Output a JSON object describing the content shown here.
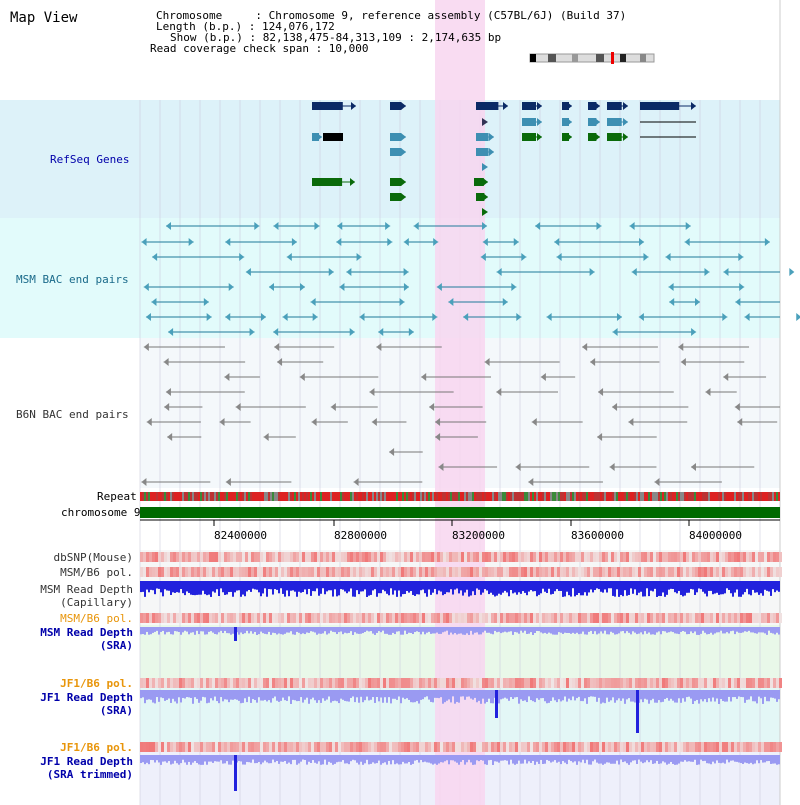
{
  "title": "Map View",
  "header": {
    "chromosome": "Chromosome     : Chromosome 9, reference assembly (C57BL/6J) (Build 37)",
    "length": "Length (b.p.) : 124,076,172",
    "show": "Show (b.p.) : 82,138,475-84,313,109 : 2,174,635 bp",
    "coverage": "Read coverage check span : 10,000"
  },
  "tracks": {
    "refseq": "RefSeq Genes",
    "msm_bac": "MSM BAC end pairs",
    "b6n_bac": "B6N BAC end pairs",
    "repeat": "Repeat",
    "chromosome": "chromosome 9",
    "dbsnp": "dbSNP(Mouse)",
    "msm_b6_pol": "MSM/B6 pol.",
    "msm_read_depth_cap_1": "MSM Read Depth",
    "msm_read_depth_cap_2": "(Capillary)",
    "msm_b6_pol_2": "MSM/B6 pol.",
    "msm_read_depth_sra_1": "MSM Read Depth",
    "msm_read_depth_sra_2": "(SRA)",
    "jf1_b6_pol": "JF1/B6 pol.",
    "jf1_read_depth_sra_1": "JF1 Read Depth",
    "jf1_read_depth_sra_2": "(SRA)",
    "jf1_b6_pol_2": "JF1/B6 pol.",
    "jf1_read_depth_trim_1": "JF1 Read Depth",
    "jf1_read_depth_trim_2": "(SRA trimmed)"
  },
  "axis_ticks": [
    "82400000",
    "82800000",
    "83200000",
    "83600000",
    "84000000"
  ],
  "colors": {
    "refseq_bg": "#ddf2f9",
    "msm_bg": "#e2fbfb",
    "b6n_bg": "#f4f8fb",
    "highlight": "#f8d6f0",
    "chrom_bar": "#006a00",
    "depth_blue": "#2222dd",
    "depth_light": "#9a9af2",
    "pol_red": "#ee3a3a"
  }
}
